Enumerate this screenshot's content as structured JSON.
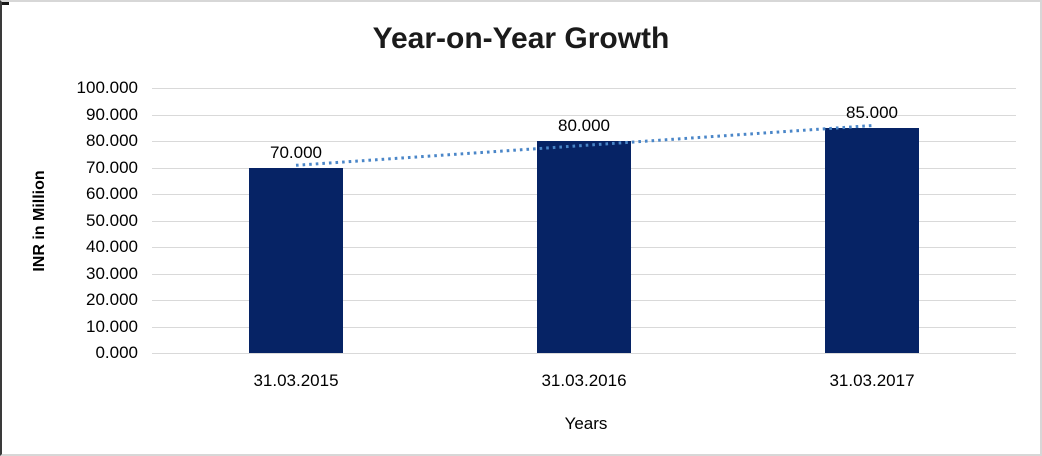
{
  "window": {
    "background": "#ffffff",
    "frame_border_color": "#d7d7d7",
    "frame_left_border_color": "#3a3a3a"
  },
  "chart_data": {
    "type": "bar",
    "title": "Year-on-Year Growth",
    "xlabel": "Years",
    "ylabel": "INR in Million",
    "categories": [
      "31.03.2015",
      "31.03.2016",
      "31.03.2017"
    ],
    "values": [
      70,
      80,
      85
    ],
    "value_labels": [
      "70.000",
      "80.000",
      "85.000"
    ],
    "ylim": [
      0,
      100
    ],
    "ytick_step": 10,
    "ytick_labels": [
      "0.000",
      "10.000",
      "20.000",
      "30.000",
      "40.000",
      "50.000",
      "60.000",
      "70.000",
      "80.000",
      "90.000",
      "100.000"
    ],
    "grid": true,
    "legend_position": "none",
    "bar_color": "#062365",
    "trendline": {
      "type": "linear",
      "style": "dotted",
      "color": "#4a86c8",
      "fit_values_at_categories": [
        70.83,
        78.33,
        85.83
      ]
    },
    "colors": {
      "gridline": "#d9d9d9",
      "axis_text": "#000000",
      "title_text": "#1b1b1b"
    }
  }
}
